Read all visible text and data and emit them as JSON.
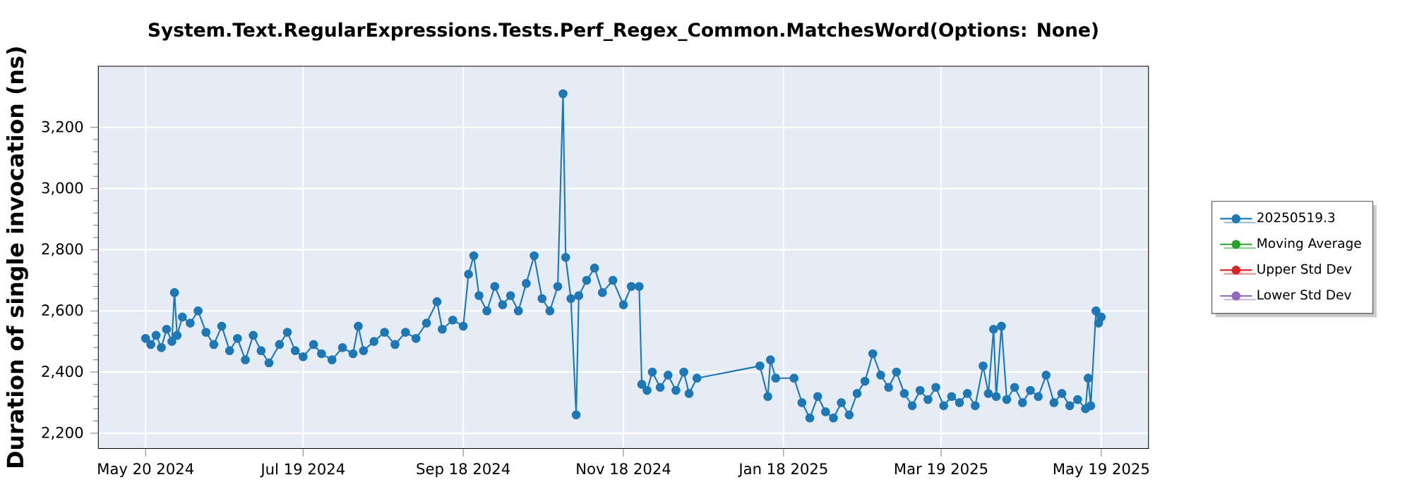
{
  "chart_data": {
    "type": "line",
    "title": "System.Text.RegularExpressions.Tests.Perf_Regex_Common.MatchesWord(Options: None)",
    "ylabel": "Duration of single invocation (ns)",
    "x": [
      "2024-05-20",
      "2024-05-22",
      "2024-05-24",
      "2024-05-26",
      "2024-05-28",
      "2024-05-30",
      "2024-05-31",
      "2024-06-01",
      "2024-06-03",
      "2024-06-06",
      "2024-06-09",
      "2024-06-12",
      "2024-06-15",
      "2024-06-18",
      "2024-06-21",
      "2024-06-24",
      "2024-06-27",
      "2024-06-30",
      "2024-07-03",
      "2024-07-06",
      "2024-07-10",
      "2024-07-13",
      "2024-07-16",
      "2024-07-19",
      "2024-07-23",
      "2024-07-26",
      "2024-07-30",
      "2024-08-03",
      "2024-08-07",
      "2024-08-09",
      "2024-08-11",
      "2024-08-15",
      "2024-08-19",
      "2024-08-23",
      "2024-08-27",
      "2024-08-31",
      "2024-09-04",
      "2024-09-08",
      "2024-09-10",
      "2024-09-14",
      "2024-09-18",
      "2024-09-20",
      "2024-09-22",
      "2024-09-24",
      "2024-09-27",
      "2024-09-30",
      "2024-10-03",
      "2024-10-06",
      "2024-10-09",
      "2024-10-12",
      "2024-10-15",
      "2024-10-18",
      "2024-10-21",
      "2024-10-24",
      "2024-10-26",
      "2024-10-27",
      "2024-10-29",
      "2024-10-31",
      "2024-11-01",
      "2024-11-04",
      "2024-11-07",
      "2024-11-10",
      "2024-11-14",
      "2024-11-18",
      "2024-11-21",
      "2024-11-24",
      "2024-11-25",
      "2024-11-27",
      "2024-11-29",
      "2024-12-02",
      "2024-12-05",
      "2024-12-08",
      "2024-12-11",
      "2024-12-13",
      "2024-12-16",
      "2025-01-09",
      "2025-01-12",
      "2025-01-13",
      "2025-01-15",
      "2025-01-22",
      "2025-01-25",
      "2025-01-28",
      "2025-01-31",
      "2025-02-03",
      "2025-02-06",
      "2025-02-09",
      "2025-02-12",
      "2025-02-15",
      "2025-02-18",
      "2025-02-21",
      "2025-02-24",
      "2025-02-27",
      "2025-03-02",
      "2025-03-05",
      "2025-03-08",
      "2025-03-11",
      "2025-03-14",
      "2025-03-17",
      "2025-03-20",
      "2025-03-23",
      "2025-03-26",
      "2025-03-29",
      "2025-04-01",
      "2025-04-04",
      "2025-04-06",
      "2025-04-08",
      "2025-04-09",
      "2025-04-11",
      "2025-04-13",
      "2025-04-16",
      "2025-04-19",
      "2025-04-22",
      "2025-04-25",
      "2025-04-28",
      "2025-05-01",
      "2025-05-04",
      "2025-05-07",
      "2025-05-10",
      "2025-05-13",
      "2025-05-14",
      "2025-05-15",
      "2025-05-17",
      "2025-05-18",
      "2025-05-19"
    ],
    "series": [
      {
        "name": "20250519.3",
        "color": "#1f77b4",
        "values": [
          2510,
          2490,
          2520,
          2480,
          2540,
          2500,
          2660,
          2520,
          2580,
          2560,
          2600,
          2530,
          2490,
          2550,
          2470,
          2510,
          2440,
          2520,
          2470,
          2430,
          2490,
          2530,
          2470,
          2450,
          2490,
          2460,
          2440,
          2480,
          2460,
          2550,
          2470,
          2500,
          2530,
          2490,
          2530,
          2510,
          2560,
          2630,
          2540,
          2570,
          2550,
          2720,
          2780,
          2650,
          2600,
          2680,
          2620,
          2650,
          2600,
          2690,
          2780,
          2640,
          2600,
          2680,
          3310,
          2775,
          2640,
          2260,
          2650,
          2700,
          2740,
          2660,
          2700,
          2620,
          2680,
          2680,
          2360,
          2340,
          2400,
          2350,
          2390,
          2340,
          2400,
          2330,
          2380,
          2420,
          2320,
          2440,
          2380,
          2380,
          2300,
          2250,
          2320,
          2270,
          2250,
          2300,
          2260,
          2330,
          2370,
          2460,
          2390,
          2350,
          2400,
          2330,
          2290,
          2340,
          2310,
          2350,
          2290,
          2320,
          2300,
          2330,
          2290,
          2420,
          2330,
          2540,
          2320,
          2550,
          2310,
          2350,
          2300,
          2340,
          2320,
          2390,
          2300,
          2330,
          2290,
          2310,
          2280,
          2380,
          2290,
          2600,
          2560,
          2580
        ]
      },
      {
        "name": "Moving Average",
        "color": "#2ca02c",
        "values": [
          null,
          null,
          null,
          null,
          null,
          null,
          null,
          null,
          null,
          null,
          null,
          null,
          null,
          null,
          null,
          null,
          null,
          null,
          null,
          null,
          null,
          null,
          null,
          null,
          null,
          null,
          null,
          null,
          null,
          null,
          null,
          null,
          null,
          null,
          null,
          null,
          null,
          null,
          null,
          null,
          null,
          null,
          null,
          null,
          null,
          null,
          null,
          null,
          null,
          null,
          null,
          null,
          null,
          null,
          null,
          null,
          null,
          null,
          null,
          null,
          null,
          null,
          null,
          null,
          null,
          null,
          null,
          null,
          null,
          null,
          null,
          null,
          null,
          null,
          null,
          null,
          null,
          null,
          null,
          null,
          null,
          null,
          null,
          null,
          null,
          null,
          null,
          null,
          null,
          null,
          null,
          null,
          null,
          null,
          null,
          null,
          null,
          null,
          null,
          null,
          null,
          null,
          null,
          null,
          null,
          null,
          null,
          null,
          null,
          null,
          null,
          null,
          null,
          null,
          null,
          null,
          null,
          null,
          null,
          null,
          null,
          null,
          null,
          null
        ]
      },
      {
        "name": "Upper Std Dev",
        "color": "#d62728",
        "values": [
          null,
          null,
          null,
          null,
          null,
          null,
          null,
          null,
          null,
          null,
          null,
          null,
          null,
          null,
          null,
          null,
          null,
          null,
          null,
          null,
          null,
          null,
          null,
          null,
          null,
          null,
          null,
          null,
          null,
          null,
          null,
          null,
          null,
          null,
          null,
          null,
          null,
          null,
          null,
          null,
          null,
          null,
          null,
          null,
          null,
          null,
          null,
          null,
          null,
          null,
          null,
          null,
          null,
          null,
          null,
          null,
          null,
          null,
          null,
          null,
          null,
          null,
          null,
          null,
          null,
          null,
          null,
          null,
          null,
          null,
          null,
          null,
          null,
          null,
          null,
          null,
          null,
          null,
          null,
          null,
          null,
          null,
          null,
          null,
          null,
          null,
          null,
          null,
          null,
          null,
          null,
          null,
          null,
          null,
          null,
          null,
          null,
          null,
          null,
          null,
          null,
          null,
          null,
          null,
          null,
          null,
          null,
          null,
          null,
          null,
          null,
          null,
          null,
          null,
          null,
          null,
          null,
          null,
          null,
          null,
          null,
          null,
          null,
          null
        ]
      },
      {
        "name": "Lower Std Dev",
        "color": "#9467bd",
        "values": [
          null,
          null,
          null,
          null,
          null,
          null,
          null,
          null,
          null,
          null,
          null,
          null,
          null,
          null,
          null,
          null,
          null,
          null,
          null,
          null,
          null,
          null,
          null,
          null,
          null,
          null,
          null,
          null,
          null,
          null,
          null,
          null,
          null,
          null,
          null,
          null,
          null,
          null,
          null,
          null,
          null,
          null,
          null,
          null,
          null,
          null,
          null,
          null,
          null,
          null,
          null,
          null,
          null,
          null,
          null,
          null,
          null,
          null,
          null,
          null,
          null,
          null,
          null,
          null,
          null,
          null,
          null,
          null,
          null,
          null,
          null,
          null,
          null,
          null,
          null,
          null,
          null,
          null,
          null,
          null,
          null,
          null,
          null,
          null,
          null,
          null,
          null,
          null,
          null,
          null,
          null,
          null,
          null,
          null,
          null,
          null,
          null,
          null,
          null,
          null,
          null,
          null,
          null,
          null,
          null,
          null,
          null,
          null,
          null,
          null,
          null,
          null,
          null,
          null,
          null,
          null,
          null,
          null,
          null,
          null,
          null,
          null,
          null,
          null
        ]
      }
    ],
    "xlim": [
      "2024-05-02",
      "2025-06-06"
    ],
    "xticks": [
      {
        "value": "2024-05-20",
        "label": "May 20 2024"
      },
      {
        "value": "2024-07-19",
        "label": "Jul 19 2024"
      },
      {
        "value": "2024-09-18",
        "label": "Sep 18 2024"
      },
      {
        "value": "2024-11-18",
        "label": "Nov 18 2024"
      },
      {
        "value": "2025-01-18",
        "label": "Jan 18 2025"
      },
      {
        "value": "2025-03-19",
        "label": "Mar 19 2025"
      },
      {
        "value": "2025-05-19",
        "label": "May 19 2025"
      }
    ],
    "ylim": [
      2150,
      3400
    ],
    "yticks": [
      {
        "value": 2200,
        "label": "2,200"
      },
      {
        "value": 2400,
        "label": "2,400"
      },
      {
        "value": 2600,
        "label": "2,600"
      },
      {
        "value": 2800,
        "label": "2,800"
      },
      {
        "value": 3000,
        "label": "3,000"
      },
      {
        "value": 3200,
        "label": "3,200"
      }
    ],
    "grid": true,
    "legend": "right",
    "marker": "circle",
    "line_style": "solid"
  }
}
